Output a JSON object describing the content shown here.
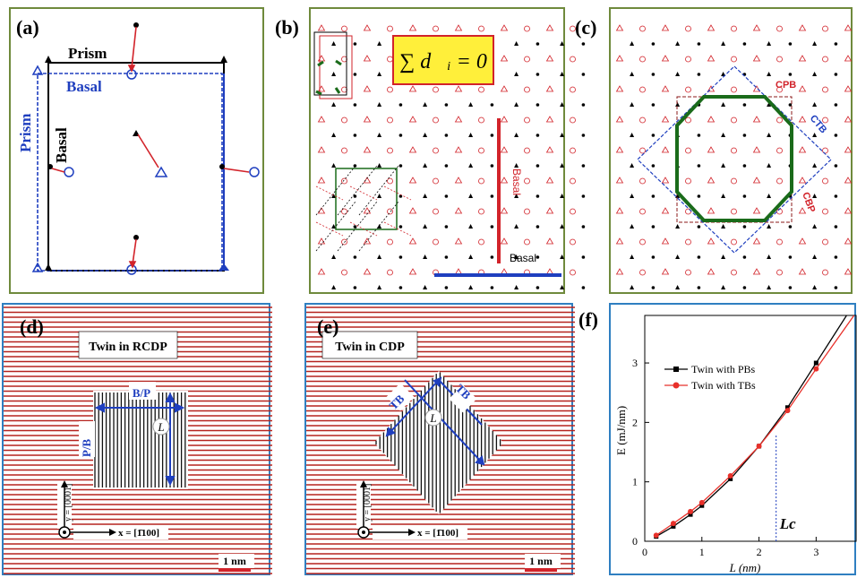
{
  "panels": {
    "a": {
      "label": "(a)",
      "prism_top": "Prism",
      "basal_top": "Basal",
      "prism_side": "Prism",
      "basal_side": "Basal"
    },
    "b": {
      "label": "(b)",
      "equation": "∑ d⃗ᵢ = 0",
      "basal_vertical": "Basal",
      "basal_horizontal": "Basal"
    },
    "c": {
      "label": "(c)",
      "cpb": "CPB",
      "ctb": "CTB",
      "cbp": "CBP"
    },
    "d": {
      "label": "(d)",
      "title": "Twin in RCDP",
      "bp": "B/P",
      "pb": "P/B",
      "L": "L",
      "y_axis": "y = [0001]",
      "x_axis": "x = [1̄100]",
      "scale": "1 nm"
    },
    "e": {
      "label": "(e)",
      "title": "Twin in CDP",
      "tb1": "TB",
      "tb2": "TB",
      "L": "L",
      "y_axis": "y = [0001]",
      "x_axis": "x = [1̄100]",
      "scale": "1 nm"
    },
    "f": {
      "label": "(f)",
      "marker": "Lc"
    }
  },
  "colors": {
    "red": "#d2232a",
    "blue": "#1f3fbf",
    "green": "#1a6b1a",
    "black": "#000000",
    "frame_green": "#6f8a3c",
    "frame_blue": "#2f7fc1"
  },
  "chart_data": {
    "type": "line",
    "xlabel": "L (nm)",
    "ylabel": "E (mJ/nm)",
    "xlim": [
      0,
      3.7
    ],
    "ylim": [
      0,
      3.8
    ],
    "xticks": [
      0,
      1,
      2,
      3
    ],
    "yticks": [
      0,
      1,
      2,
      3
    ],
    "legend_position": "top-left",
    "series": [
      {
        "name": "Twin with PBs",
        "color": "#000000",
        "marker": "square",
        "x": [
          0.2,
          0.5,
          0.8,
          1.0,
          1.5,
          2.0,
          2.5,
          3.0,
          3.6
        ],
        "y": [
          0.08,
          0.25,
          0.45,
          0.6,
          1.05,
          1.6,
          2.25,
          3.0,
          3.9
        ]
      },
      {
        "name": "Twin with TBs",
        "color": "#e8302a",
        "marker": "circle",
        "x": [
          0.2,
          0.5,
          0.8,
          1.0,
          1.5,
          2.0,
          2.5,
          3.0,
          3.7
        ],
        "y": [
          0.1,
          0.3,
          0.5,
          0.65,
          1.1,
          1.6,
          2.2,
          2.9,
          3.85
        ]
      }
    ],
    "marker_x": 2.3
  }
}
